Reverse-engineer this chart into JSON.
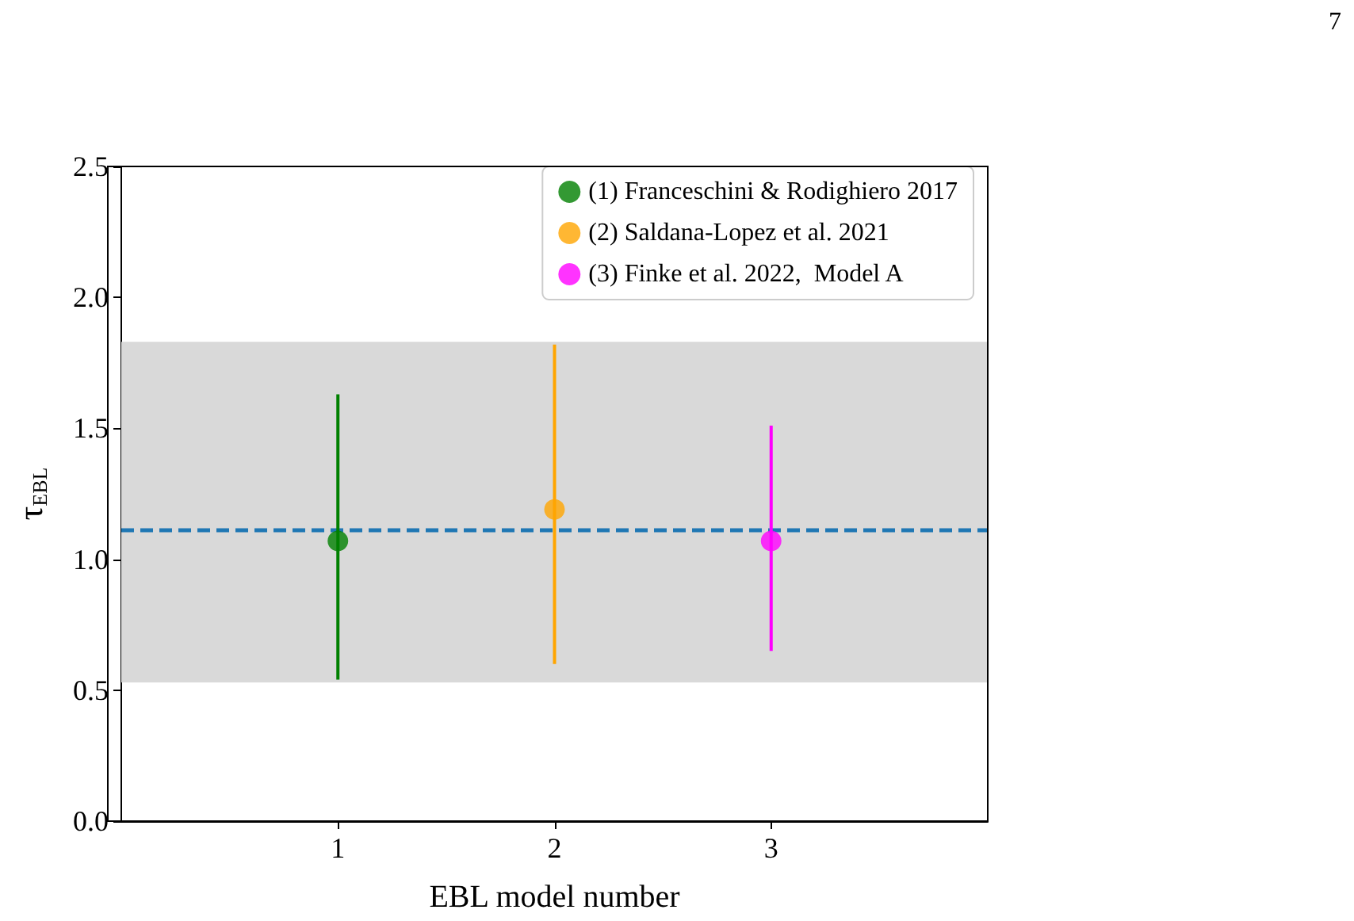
{
  "chart_data": {
    "type": "scatter",
    "xlabel": "EBL model number",
    "ylabel": "τ$_{EBL}$",
    "xlim": [
      0,
      4
    ],
    "xticks": [
      1,
      2,
      3
    ],
    "ylim": [
      0,
      2.5
    ],
    "yticks": [
      {
        "value": 0,
        "label": "0.0"
      },
      {
        "value": 0.5,
        "label": "0.5"
      },
      {
        "value": 1,
        "label": "1.0"
      },
      {
        "value": 1.5,
        "label": "1.5"
      },
      {
        "value": 2,
        "label": "2.0"
      },
      {
        "value": 2.5,
        "label": "2.5"
      }
    ],
    "series": [
      {
        "name": "(1) Franceschini & Rodighiero 2017",
        "color": "#008000",
        "x": [
          1
        ],
        "values": [
          1.07
        ],
        "errors": [
          [
            0.54,
            1.63
          ]
        ]
      },
      {
        "name": "(2) Saldana-Lopez et al. 2021",
        "color": "#ffa500",
        "x": [
          2
        ],
        "values": [
          1.19
        ],
        "errors": [
          [
            0.6,
            1.82
          ]
        ]
      },
      {
        "name": "(3) Finke et al. 2022,  Model A",
        "color": "#ff00ff",
        "x": [
          3
        ],
        "values": [
          1.07
        ],
        "errors": [
          [
            0.65,
            1.51
          ]
        ]
      }
    ],
    "ref_lines": [
      {
        "axis": "y",
        "value": 1.11,
        "color": "#1f77b4",
        "line_style": "dashed"
      }
    ],
    "bands": [
      {
        "axis": "y",
        "from": 0.53,
        "to": 1.83,
        "color": "#d9d9d9"
      }
    ],
    "marker": "circle",
    "legend": "top right",
    "grid": false,
    "annotations": [
      "7"
    ]
  }
}
